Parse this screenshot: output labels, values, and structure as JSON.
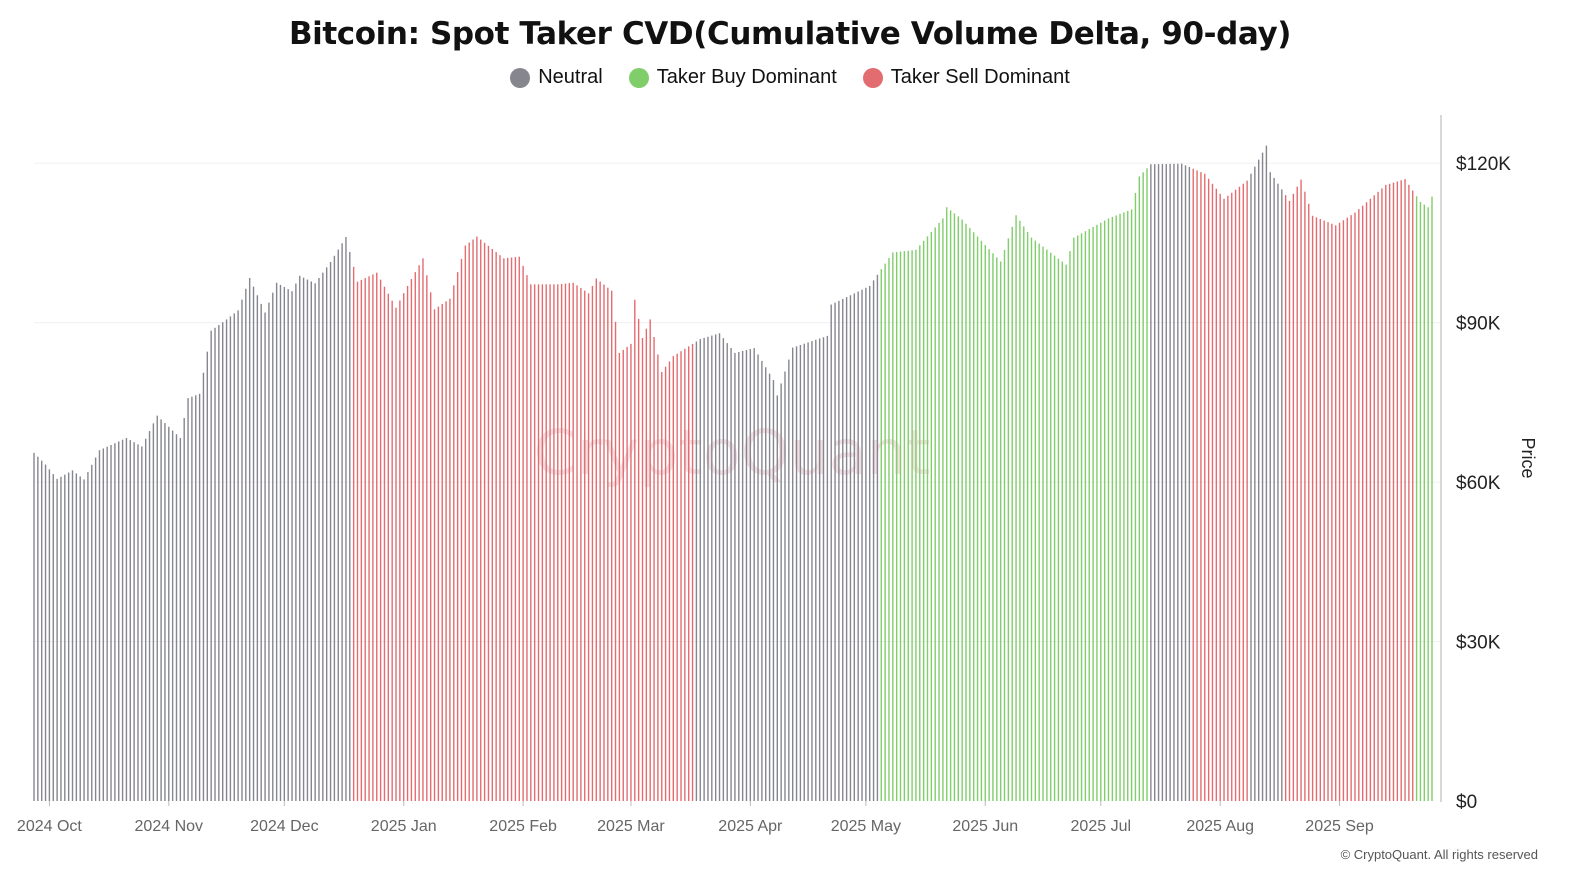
{
  "title": "Bitcoin: Spot Taker CVD(Cumulative Volume Delta, 90-day)",
  "legend": [
    {
      "label": "Neutral",
      "color": "#86868e"
    },
    {
      "label": "Taker Buy Dominant",
      "color": "#7fce6a"
    },
    {
      "label": "Taker Sell Dominant",
      "color": "#e36c70"
    }
  ],
  "watermark": "CryptoQuant",
  "copyright": "© CryptoQuant. All rights reserved",
  "chart_data": {
    "type": "bar",
    "ylabel": "Price",
    "ylim": [
      0,
      130000
    ],
    "yticks": [
      0,
      30000,
      60000,
      90000,
      120000
    ],
    "ytick_labels": [
      "$0",
      "$30K",
      "$60K",
      "$90K",
      "$120K"
    ],
    "x_tick_labels": [
      "2024 Oct",
      "2024 Nov",
      "2024 Dec",
      "2025 Jan",
      "2025 Feb",
      "2025 Mar",
      "2025 Apr",
      "2025 May",
      "2025 Jun",
      "2025 Jul",
      "2025 Aug",
      "2025 Sep"
    ],
    "x_range": [
      "2024-09-27",
      "2025-09-25"
    ],
    "grid": true,
    "legend_position": "top",
    "series_colors": {
      "neutral": "#86868e",
      "buy": "#7fce6a",
      "sell": "#e36c70"
    },
    "price_keypoints": [
      [
        "2024-09-27",
        65500
      ],
      [
        "2024-09-30",
        63300
      ],
      [
        "2024-10-03",
        60600
      ],
      [
        "2024-10-07",
        62200
      ],
      [
        "2024-10-10",
        60500
      ],
      [
        "2024-10-14",
        66000
      ],
      [
        "2024-10-21",
        68300
      ],
      [
        "2024-10-25",
        66700
      ],
      [
        "2024-10-29",
        72500
      ],
      [
        "2024-11-04",
        68300
      ],
      [
        "2024-11-06",
        75800
      ],
      [
        "2024-11-09",
        76600
      ],
      [
        "2024-11-12",
        88500
      ],
      [
        "2024-11-16",
        90600
      ],
      [
        "2024-11-19",
        92300
      ],
      [
        "2024-11-22",
        98400
      ],
      [
        "2024-11-26",
        91900
      ],
      [
        "2024-11-29",
        97500
      ],
      [
        "2024-12-03",
        95900
      ],
      [
        "2024-12-05",
        98800
      ],
      [
        "2024-12-09",
        97400
      ],
      [
        "2024-12-13",
        101400
      ],
      [
        "2024-12-17",
        106100
      ],
      [
        "2024-12-20",
        97700
      ],
      [
        "2024-12-25",
        99400
      ],
      [
        "2024-12-30",
        92800
      ],
      [
        "2025-01-02",
        96900
      ],
      [
        "2025-01-06",
        102100
      ],
      [
        "2025-01-09",
        92500
      ],
      [
        "2025-01-13",
        94500
      ],
      [
        "2025-01-17",
        104500
      ],
      [
        "2025-01-20",
        106200
      ],
      [
        "2025-01-27",
        102100
      ],
      [
        "2025-01-31",
        102400
      ],
      [
        "2025-02-03",
        97200
      ],
      [
        "2025-02-10",
        97200
      ],
      [
        "2025-02-14",
        97500
      ],
      [
        "2025-02-18",
        95500
      ],
      [
        "2025-02-20",
        98300
      ],
      [
        "2025-02-24",
        96000
      ],
      [
        "2025-02-26",
        84300
      ],
      [
        "2025-03-01",
        86000
      ],
      [
        "2025-03-02",
        94300
      ],
      [
        "2025-03-04",
        87100
      ],
      [
        "2025-03-06",
        90600
      ],
      [
        "2025-03-09",
        80700
      ],
      [
        "2025-03-12",
        83700
      ],
      [
        "2025-03-19",
        86900
      ],
      [
        "2025-03-24",
        88000
      ],
      [
        "2025-03-28",
        84300
      ],
      [
        "2025-04-02",
        85200
      ],
      [
        "2025-04-07",
        79200
      ],
      [
        "2025-04-08",
        76300
      ],
      [
        "2025-04-12",
        85300
      ],
      [
        "2025-04-21",
        87500
      ],
      [
        "2025-04-22",
        93400
      ],
      [
        "2025-05-02",
        96900
      ],
      [
        "2025-05-08",
        103200
      ],
      [
        "2025-05-14",
        103700
      ],
      [
        "2025-05-21",
        109600
      ],
      [
        "2025-05-22",
        111700
      ],
      [
        "2025-05-26",
        109400
      ],
      [
        "2025-06-01",
        104600
      ],
      [
        "2025-06-05",
        101500
      ],
      [
        "2025-06-09",
        110200
      ],
      [
        "2025-06-13",
        106000
      ],
      [
        "2025-06-22",
        100900
      ],
      [
        "2025-06-24",
        106000
      ],
      [
        "2025-07-03",
        109600
      ],
      [
        "2025-07-09",
        111300
      ],
      [
        "2025-07-11",
        117500
      ],
      [
        "2025-07-14",
        119800
      ],
      [
        "2025-07-22",
        119900
      ],
      [
        "2025-07-28",
        118000
      ],
      [
        "2025-08-02",
        113300
      ],
      [
        "2025-08-08",
        116700
      ],
      [
        "2025-08-13",
        123300
      ],
      [
        "2025-08-14",
        118300
      ],
      [
        "2025-08-19",
        112900
      ],
      [
        "2025-08-22",
        116900
      ],
      [
        "2025-08-25",
        110100
      ],
      [
        "2025-08-31",
        108300
      ],
      [
        "2025-09-05",
        110700
      ],
      [
        "2025-09-13",
        115900
      ],
      [
        "2025-09-18",
        117000
      ],
      [
        "2025-09-22",
        112700
      ],
      [
        "2025-09-24",
        111700
      ],
      [
        "2025-09-25",
        113700
      ]
    ],
    "regimes": [
      {
        "from": "2024-09-27",
        "to": "2024-12-18",
        "type": "neutral"
      },
      {
        "from": "2024-12-19",
        "to": "2025-03-17",
        "type": "sell"
      },
      {
        "from": "2025-03-18",
        "to": "2025-05-04",
        "type": "neutral"
      },
      {
        "from": "2025-05-05",
        "to": "2025-07-13",
        "type": "buy"
      },
      {
        "from": "2025-07-14",
        "to": "2025-07-24",
        "type": "neutral"
      },
      {
        "from": "2025-07-25",
        "to": "2025-08-08",
        "type": "sell"
      },
      {
        "from": "2025-08-09",
        "to": "2025-08-17",
        "type": "neutral"
      },
      {
        "from": "2025-08-18",
        "to": "2025-09-20",
        "type": "sell"
      },
      {
        "from": "2025-09-21",
        "to": "2025-09-25",
        "type": "buy"
      }
    ]
  }
}
